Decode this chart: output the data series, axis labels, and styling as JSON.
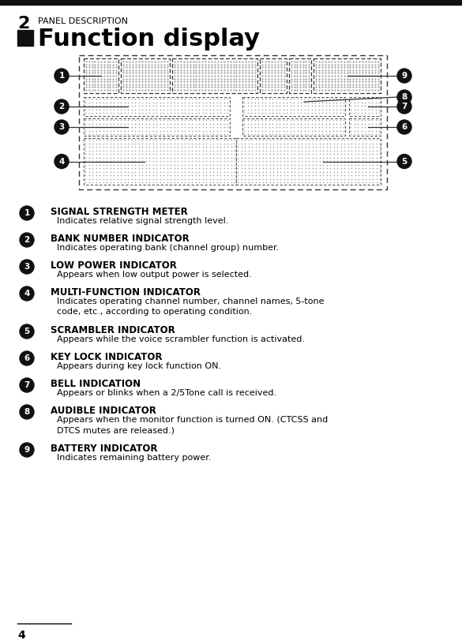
{
  "bg_color": "#ffffff",
  "top_bar_color": "#111111",
  "chapter_num": "2",
  "chapter_title": "PANEL DESCRIPTION",
  "section_title": "Function display",
  "section_square_color": "#111111",
  "page_num": "4",
  "items": [
    {
      "num": "1",
      "title": "SIGNAL STRENGTH METER",
      "desc": "Indicates relative signal strength level.",
      "desc2": ""
    },
    {
      "num": "2",
      "title": "BANK NUMBER INDICATOR",
      "desc": "Indicates operating bank (channel group) number.",
      "desc2": ""
    },
    {
      "num": "3",
      "title": "LOW POWER INDICATOR",
      "desc": "Appears when low output power is selected.",
      "desc2": ""
    },
    {
      "num": "4",
      "title": "MULTI-FUNCTION INDICATOR",
      "desc": "Indicates operating channel number, channel names, 5-tone",
      "desc2": "code, etc., according to operating condition."
    },
    {
      "num": "5",
      "title": "SCRAMBLER INDICATOR",
      "desc": "Appears while the voice scrambler function is activated.",
      "desc2": ""
    },
    {
      "num": "6",
      "title": "KEY LOCK INDICATOR",
      "desc": "Appears during key lock function ON.",
      "desc2": ""
    },
    {
      "num": "7",
      "title": "BELL INDICATION",
      "desc": "Appears or blinks when a 2/5Tone call is received.",
      "desc2": ""
    },
    {
      "num": "8",
      "title": "AUDIBLE INDICATOR",
      "desc": "Appears when the monitor function is turned ON. (CTCSS and",
      "desc2": "DTCS mutes are released.)"
    },
    {
      "num": "9",
      "title": "BATTERY INDICATOR",
      "desc": "Indicates remaining battery power.",
      "desc2": ""
    }
  ]
}
